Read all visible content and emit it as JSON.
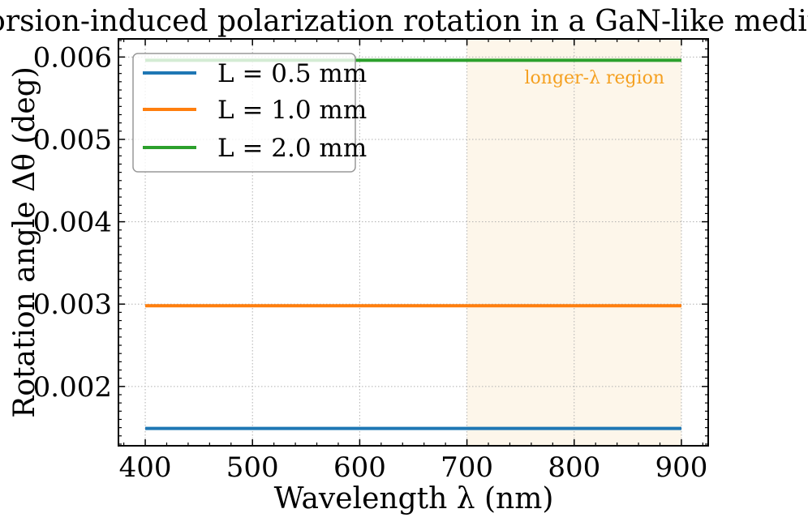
{
  "chart_data": {
    "type": "line",
    "title": "Torsion-induced polarization rotation in a GaN-like medium",
    "xlabel": "Wavelength λ (nm)",
    "ylabel": "Rotation angle Δθ (deg)",
    "xlim": [
      375,
      925
    ],
    "ylim": [
      0.00128,
      0.00622
    ],
    "xticks": [
      400,
      500,
      600,
      700,
      800,
      900
    ],
    "yticks": [
      0.002,
      0.003,
      0.004,
      0.005,
      0.006
    ],
    "xtick_labels": [
      "400",
      "500",
      "600",
      "700",
      "800",
      "900"
    ],
    "ytick_labels": [
      "0.002",
      "0.003",
      "0.004",
      "0.005",
      "0.006"
    ],
    "grid": true,
    "legend_position": "top-left",
    "series": [
      {
        "name": "L = 0.5 mm",
        "color": "#1f77b4",
        "x": [
          400,
          900
        ],
        "y": [
          0.00149,
          0.00149
        ]
      },
      {
        "name": "L = 1.0 mm",
        "color": "#ff7f0e",
        "x": [
          400,
          900
        ],
        "y": [
          0.00298,
          0.00298
        ]
      },
      {
        "name": "L = 2.0 mm",
        "color": "#2ca02c",
        "x": [
          400,
          900
        ],
        "y": [
          0.00596,
          0.00596
        ]
      }
    ],
    "shaded_region": {
      "x_range": [
        700,
        900
      ],
      "color": "#fdf6ea",
      "label": "longer-λ region",
      "label_color": "#f5a020"
    }
  }
}
